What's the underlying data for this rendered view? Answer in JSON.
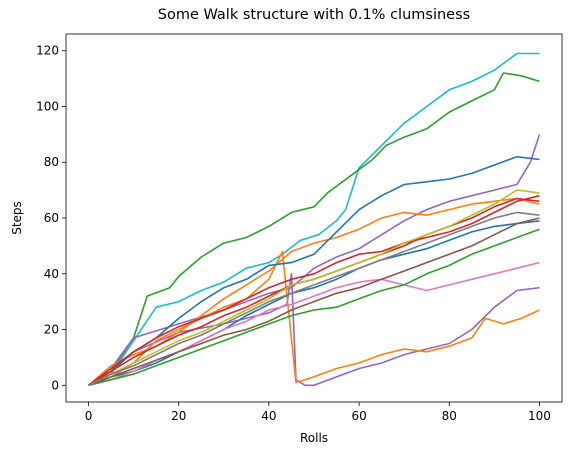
{
  "chart_data": {
    "type": "line",
    "title": "Some Walk structure with 0.1% clumsiness",
    "xlabel": "Rolls",
    "ylabel": "Steps",
    "xlim": [
      -5,
      105
    ],
    "ylim": [
      -6,
      126
    ],
    "xticks": [
      0,
      20,
      40,
      60,
      80,
      100
    ],
    "yticks": [
      0,
      20,
      40,
      60,
      80,
      100,
      120
    ],
    "grid": false,
    "series": [
      {
        "color": "#17becf",
        "points": [
          [
            0,
            0
          ],
          [
            5,
            4
          ],
          [
            10,
            16
          ],
          [
            15,
            28
          ],
          [
            20,
            30
          ],
          [
            25,
            34
          ],
          [
            30,
            37
          ],
          [
            35,
            42
          ],
          [
            40,
            44
          ],
          [
            43,
            47
          ],
          [
            47,
            52
          ],
          [
            51,
            54
          ],
          [
            55,
            59
          ],
          [
            57,
            63
          ],
          [
            60,
            78
          ],
          [
            65,
            86
          ],
          [
            70,
            94
          ],
          [
            75,
            100
          ],
          [
            80,
            106
          ],
          [
            85,
            109
          ],
          [
            90,
            113
          ],
          [
            95,
            119
          ],
          [
            100,
            119
          ]
        ]
      },
      {
        "color": "#2ca02c",
        "points": [
          [
            0,
            0
          ],
          [
            5,
            5
          ],
          [
            10,
            17
          ],
          [
            13,
            32
          ],
          [
            18,
            35
          ],
          [
            20,
            39
          ],
          [
            25,
            46
          ],
          [
            30,
            51
          ],
          [
            35,
            53
          ],
          [
            40,
            57
          ],
          [
            45,
            62
          ],
          [
            50,
            64
          ],
          [
            53,
            69
          ],
          [
            58,
            75
          ],
          [
            63,
            81
          ],
          [
            66,
            86
          ],
          [
            70,
            89
          ],
          [
            75,
            92
          ],
          [
            80,
            98
          ],
          [
            85,
            102
          ],
          [
            90,
            106
          ],
          [
            92,
            112
          ],
          [
            96,
            111
          ],
          [
            100,
            109
          ]
        ]
      },
      {
        "color": "#9467bd",
        "points": [
          [
            0,
            0
          ],
          [
            5,
            5
          ],
          [
            10,
            12
          ],
          [
            20,
            19
          ],
          [
            30,
            22
          ],
          [
            40,
            26
          ],
          [
            44,
            29
          ],
          [
            45,
            40
          ],
          [
            46,
            2
          ],
          [
            48,
            0
          ],
          [
            50,
            0
          ],
          [
            55,
            3
          ],
          [
            60,
            6
          ],
          [
            65,
            8
          ],
          [
            70,
            11
          ],
          [
            75,
            13
          ],
          [
            80,
            15
          ],
          [
            85,
            20
          ],
          [
            90,
            28
          ],
          [
            95,
            34
          ],
          [
            100,
            35
          ]
        ]
      },
      {
        "color": "#9467bd",
        "points": [
          [
            0,
            0
          ],
          [
            5,
            6
          ],
          [
            10,
            17
          ],
          [
            20,
            22
          ],
          [
            30,
            27
          ],
          [
            40,
            33
          ],
          [
            45,
            35
          ],
          [
            50,
            42
          ],
          [
            55,
            46
          ],
          [
            60,
            49
          ],
          [
            65,
            54
          ],
          [
            70,
            59
          ],
          [
            75,
            63
          ],
          [
            80,
            66
          ],
          [
            85,
            68
          ],
          [
            90,
            70
          ],
          [
            95,
            72
          ],
          [
            98,
            80
          ],
          [
            100,
            90
          ]
        ]
      },
      {
        "color": "#ff7f0e",
        "points": [
          [
            0,
            0
          ],
          [
            5,
            3
          ],
          [
            10,
            8
          ],
          [
            15,
            16
          ],
          [
            20,
            20
          ],
          [
            25,
            24
          ],
          [
            30,
            28
          ],
          [
            35,
            31
          ],
          [
            40,
            38
          ],
          [
            43,
            48
          ],
          [
            46,
            1
          ],
          [
            50,
            3
          ],
          [
            55,
            6
          ],
          [
            60,
            8
          ],
          [
            65,
            11
          ],
          [
            70,
            13
          ],
          [
            75,
            12
          ],
          [
            80,
            14
          ],
          [
            85,
            17
          ],
          [
            88,
            24
          ],
          [
            92,
            22
          ],
          [
            96,
            24
          ],
          [
            100,
            27
          ]
        ]
      },
      {
        "color": "#ff7f0e",
        "points": [
          [
            0,
            0
          ],
          [
            5,
            7
          ],
          [
            10,
            11
          ],
          [
            15,
            14
          ],
          [
            20,
            19
          ],
          [
            25,
            25
          ],
          [
            30,
            31
          ],
          [
            35,
            36
          ],
          [
            40,
            41
          ],
          [
            45,
            48
          ],
          [
            50,
            51
          ],
          [
            55,
            53
          ],
          [
            60,
            56
          ],
          [
            65,
            60
          ],
          [
            70,
            62
          ],
          [
            75,
            61
          ],
          [
            80,
            63
          ],
          [
            85,
            65
          ],
          [
            90,
            66
          ],
          [
            95,
            67
          ],
          [
            100,
            65
          ]
        ]
      },
      {
        "color": "#1f77b4",
        "points": [
          [
            0,
            0
          ],
          [
            5,
            5
          ],
          [
            10,
            12
          ],
          [
            15,
            17
          ],
          [
            20,
            24
          ],
          [
            25,
            30
          ],
          [
            30,
            35
          ],
          [
            35,
            38
          ],
          [
            40,
            43
          ],
          [
            45,
            44
          ],
          [
            50,
            47
          ],
          [
            55,
            55
          ],
          [
            60,
            63
          ],
          [
            65,
            68
          ],
          [
            70,
            72
          ],
          [
            75,
            73
          ],
          [
            80,
            74
          ],
          [
            85,
            76
          ],
          [
            90,
            79
          ],
          [
            95,
            82
          ],
          [
            100,
            81
          ]
        ]
      },
      {
        "color": "#1f77b4",
        "points": [
          [
            0,
            0
          ],
          [
            5,
            3
          ],
          [
            10,
            5
          ],
          [
            15,
            8
          ],
          [
            20,
            12
          ],
          [
            25,
            16
          ],
          [
            30,
            20
          ],
          [
            35,
            25
          ],
          [
            40,
            29
          ],
          [
            45,
            33
          ],
          [
            50,
            35
          ],
          [
            55,
            38
          ],
          [
            60,
            42
          ],
          [
            65,
            45
          ],
          [
            70,
            47
          ],
          [
            75,
            49
          ],
          [
            80,
            52
          ],
          [
            85,
            55
          ],
          [
            90,
            57
          ],
          [
            95,
            58
          ],
          [
            100,
            59
          ]
        ]
      },
      {
        "color": "#d62728",
        "points": [
          [
            0,
            0
          ],
          [
            5,
            6
          ],
          [
            10,
            12
          ],
          [
            15,
            17
          ],
          [
            20,
            21
          ],
          [
            25,
            24
          ],
          [
            30,
            27
          ],
          [
            35,
            31
          ],
          [
            40,
            35
          ],
          [
            45,
            38
          ],
          [
            50,
            40
          ],
          [
            55,
            44
          ],
          [
            60,
            47
          ],
          [
            65,
            48
          ],
          [
            70,
            51
          ],
          [
            75,
            53
          ],
          [
            80,
            55
          ],
          [
            85,
            58
          ],
          [
            90,
            62
          ],
          [
            95,
            66
          ],
          [
            100,
            68
          ]
        ]
      },
      {
        "color": "#d62728",
        "points": [
          [
            0,
            0
          ],
          [
            5,
            5
          ],
          [
            10,
            10
          ],
          [
            15,
            14
          ],
          [
            20,
            18
          ],
          [
            25,
            21
          ],
          [
            30,
            25
          ],
          [
            35,
            28
          ],
          [
            40,
            32
          ],
          [
            45,
            36
          ],
          [
            50,
            38
          ],
          [
            55,
            41
          ],
          [
            60,
            44
          ],
          [
            65,
            47
          ],
          [
            70,
            50
          ],
          [
            75,
            54
          ],
          [
            80,
            57
          ],
          [
            85,
            60
          ],
          [
            90,
            64
          ],
          [
            95,
            67
          ],
          [
            100,
            66
          ]
        ]
      },
      {
        "color": "#bcbd22",
        "points": [
          [
            0,
            0
          ],
          [
            5,
            4
          ],
          [
            10,
            8
          ],
          [
            15,
            12
          ],
          [
            20,
            16
          ],
          [
            25,
            19
          ],
          [
            30,
            23
          ],
          [
            35,
            27
          ],
          [
            40,
            31
          ],
          [
            45,
            36
          ],
          [
            50,
            38
          ],
          [
            55,
            41
          ],
          [
            60,
            44
          ],
          [
            65,
            47
          ],
          [
            70,
            51
          ],
          [
            75,
            54
          ],
          [
            80,
            57
          ],
          [
            85,
            61
          ],
          [
            90,
            65
          ],
          [
            95,
            70
          ],
          [
            100,
            69
          ]
        ]
      },
      {
        "color": "#e377c2",
        "points": [
          [
            0,
            0
          ],
          [
            5,
            2
          ],
          [
            10,
            5
          ],
          [
            15,
            9
          ],
          [
            20,
            12
          ],
          [
            25,
            16
          ],
          [
            30,
            20
          ],
          [
            35,
            23
          ],
          [
            40,
            27
          ],
          [
            45,
            29
          ],
          [
            50,
            32
          ],
          [
            55,
            35
          ],
          [
            60,
            37
          ],
          [
            65,
            38
          ],
          [
            70,
            36
          ],
          [
            75,
            34
          ],
          [
            80,
            36
          ],
          [
            85,
            38
          ],
          [
            90,
            40
          ],
          [
            95,
            42
          ],
          [
            100,
            44
          ]
        ]
      },
      {
        "color": "#2ca02c",
        "points": [
          [
            0,
            0
          ],
          [
            5,
            2
          ],
          [
            10,
            4
          ],
          [
            15,
            7
          ],
          [
            20,
            10
          ],
          [
            25,
            13
          ],
          [
            30,
            16
          ],
          [
            35,
            19
          ],
          [
            40,
            22
          ],
          [
            45,
            25
          ],
          [
            50,
            27
          ],
          [
            55,
            28
          ],
          [
            60,
            31
          ],
          [
            65,
            34
          ],
          [
            70,
            36
          ],
          [
            75,
            40
          ],
          [
            80,
            43
          ],
          [
            85,
            47
          ],
          [
            90,
            50
          ],
          [
            95,
            53
          ],
          [
            100,
            56
          ]
        ]
      },
      {
        "color": "#8c564b",
        "points": [
          [
            0,
            0
          ],
          [
            5,
            3
          ],
          [
            10,
            6
          ],
          [
            15,
            9
          ],
          [
            20,
            12
          ],
          [
            25,
            15
          ],
          [
            30,
            18
          ],
          [
            35,
            20
          ],
          [
            40,
            23
          ],
          [
            45,
            27
          ],
          [
            50,
            30
          ],
          [
            55,
            33
          ],
          [
            60,
            35
          ],
          [
            65,
            38
          ],
          [
            70,
            41
          ],
          [
            75,
            44
          ],
          [
            80,
            47
          ],
          [
            85,
            50
          ],
          [
            90,
            54
          ],
          [
            95,
            58
          ],
          [
            100,
            60
          ]
        ]
      },
      {
        "color": "#7f7f7f",
        "points": [
          [
            0,
            0
          ],
          [
            5,
            4
          ],
          [
            10,
            7
          ],
          [
            15,
            11
          ],
          [
            20,
            15
          ],
          [
            25,
            18
          ],
          [
            30,
            22
          ],
          [
            35,
            26
          ],
          [
            40,
            30
          ],
          [
            45,
            33
          ],
          [
            50,
            36
          ],
          [
            55,
            39
          ],
          [
            60,
            42
          ],
          [
            65,
            45
          ],
          [
            70,
            48
          ],
          [
            75,
            51
          ],
          [
            80,
            54
          ],
          [
            85,
            57
          ],
          [
            90,
            60
          ],
          [
            95,
            62
          ],
          [
            100,
            61
          ]
        ]
      }
    ]
  }
}
